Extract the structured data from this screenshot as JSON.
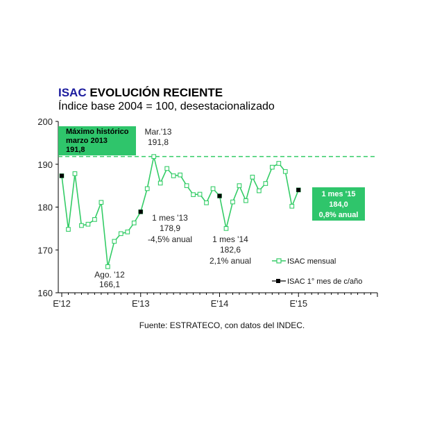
{
  "header": {
    "title_brand": "ISAC",
    "title_rest": " EVOLUCIÓN RECIENTE",
    "subtitle": "Índice base 2004 = 100, desestacionalizado"
  },
  "source": "Fuente: ESTRATECO, con datos del INDEC.",
  "colors": {
    "series": "#33cc66",
    "highlight_box": "#2fc56b",
    "black_point": "#000000",
    "brand": "#1b1b9e",
    "neg_text": "#cc2222",
    "pos_text": "#2233bb"
  },
  "chart_data": {
    "type": "line",
    "ylim": [
      160,
      200
    ],
    "yticks": [
      160,
      170,
      180,
      190,
      200
    ],
    "xticks": [
      {
        "label": "E'12",
        "index": 0
      },
      {
        "label": "E'13",
        "index": 12
      },
      {
        "label": "E'14",
        "index": 24
      },
      {
        "label": "E'15",
        "index": 36
      }
    ],
    "x_count": 49,
    "grid": false,
    "reference_line": {
      "value": 191.8,
      "style": "dashed"
    },
    "series": [
      {
        "name": "ISAC mensual",
        "values": [
          187.3,
          174.8,
          187.8,
          175.7,
          176.0,
          177.1,
          181.1,
          166.1,
          172.0,
          173.8,
          174.2,
          176.3,
          178.9,
          184.3,
          191.8,
          185.6,
          189.0,
          187.3,
          187.5,
          185.0,
          182.9,
          183.0,
          181.0,
          184.3,
          182.6,
          175.0,
          181.2,
          185.0,
          181.5,
          187.0,
          183.8,
          185.5,
          189.3,
          190.2,
          188.3,
          180.2,
          184.0
        ]
      },
      {
        "name": "ISAC 1° mes de c/año",
        "points": [
          {
            "index": 0,
            "value": 187.3
          },
          {
            "index": 12,
            "value": 178.9
          },
          {
            "index": 24,
            "value": 182.6
          },
          {
            "index": 36,
            "value": 184.0
          }
        ]
      }
    ],
    "annotations": [
      {
        "lines": [
          "Mar.'13",
          "191,8"
        ]
      },
      {
        "lines": [
          "1 mes '13",
          "178,9"
        ],
        "note": "-4,5% anual"
      },
      {
        "lines": [
          "Ago. '12",
          "166,1"
        ]
      },
      {
        "lines": [
          "1 mes '14",
          "182,6"
        ],
        "note": "2,1% anual"
      }
    ],
    "box_max": [
      "Máximo histórico",
      "marzo 2013",
      "191,8"
    ],
    "box_current": [
      "1 mes '15",
      "184,0",
      "0,8% anual"
    ]
  }
}
